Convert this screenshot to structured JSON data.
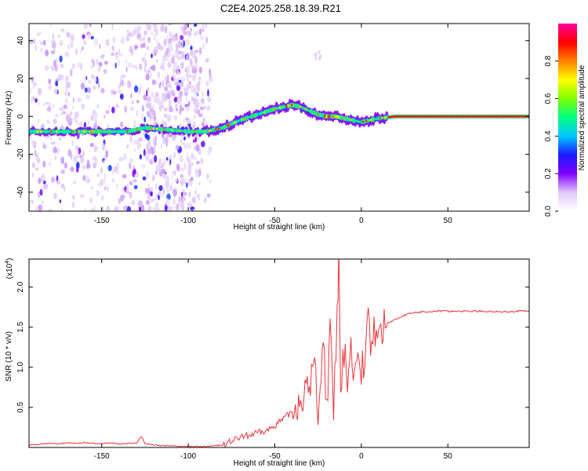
{
  "title": "C2E4.2025.258.18.39.R21",
  "colors": {
    "snr_line": "#e8343a",
    "background": "#ffffff",
    "text": "#000000"
  },
  "chart_data": [
    {
      "type": "heatmap",
      "name": "spectrogram",
      "xlabel": "Height of straight line (km)",
      "ylabel": "Frequency (Hz)",
      "xlim": [
        -192,
        97
      ],
      "ylim": [
        -50,
        49
      ],
      "xticks": [
        -150,
        -100,
        -50,
        0,
        50
      ],
      "xtick_labels": [
        "-150",
        "-100",
        "-50",
        "0",
        "50"
      ],
      "yticks": [
        -40,
        -20,
        0,
        20,
        40
      ],
      "ytick_labels": [
        "-40",
        "-20",
        "0",
        "20",
        "40"
      ],
      "colorbar": {
        "label": "Normalized spectral amplitude",
        "range": [
          0,
          1
        ],
        "ticks": [
          0.0,
          0.2,
          0.4,
          0.6,
          0.8
        ],
        "tick_labels": [
          "0.0",
          "0.2",
          "0.4",
          "0.6",
          "0.8"
        ],
        "colormap": [
          "#ffffff",
          "#e0c8f8",
          "#8000ff",
          "#1a1aff",
          "#00c8ff",
          "#00ff80",
          "#80ff00",
          "#ffff00",
          "#ff8000",
          "#ff0000",
          "#ff00a0"
        ]
      },
      "ridge": {
        "x": [
          -192,
          -170,
          -150,
          -135,
          -125,
          -100,
          -90,
          -80,
          -70,
          -60,
          -50,
          -40,
          -35,
          -30,
          -25,
          -20,
          -15,
          -10,
          -5,
          0,
          5,
          10,
          20,
          40,
          60,
          80,
          97
        ],
        "y": [
          -8,
          -8,
          -8,
          -8,
          -6,
          -8,
          -8,
          -6,
          -2,
          1,
          4,
          6,
          5,
          3,
          1,
          0,
          0,
          -1,
          -2,
          -3,
          -2,
          -1,
          0,
          0,
          0,
          0,
          0
        ]
      }
    },
    {
      "type": "line",
      "name": "snr",
      "xlabel": "Height of straight line (km)",
      "ylabel": "SNR (10 * v/v)",
      "scale_label": "(x10",
      "scale_exp": "4",
      "xlim": [
        -192,
        97
      ],
      "ylim": [
        0,
        2.35
      ],
      "xticks": [
        -150,
        -100,
        -50,
        0,
        50
      ],
      "xtick_labels": [
        "-150",
        "-100",
        "-50",
        "0",
        "50"
      ],
      "yticks": [
        0.5,
        1.0,
        1.5,
        2.0
      ],
      "ytick_labels": [
        "0.5",
        "1.0",
        "1.5",
        "2.0"
      ],
      "series": [
        {
          "name": "SNR",
          "x": [
            -192,
            -185,
            -180,
            -175,
            -170,
            -165,
            -160,
            -155,
            -150,
            -145,
            -140,
            -135,
            -130,
            -127,
            -125,
            -120,
            -110,
            -100,
            -90,
            -80,
            -75,
            -70,
            -65,
            -60,
            -55,
            -50,
            -45,
            -40,
            -35,
            -30,
            -27,
            -25,
            -22,
            -20,
            -18,
            -16,
            -14,
            -13,
            -12,
            -10,
            -8,
            -6,
            -4,
            -2,
            0,
            2,
            4,
            6,
            8,
            10,
            12,
            15,
            20,
            25,
            30,
            35,
            40,
            50,
            60,
            70,
            80,
            90,
            97
          ],
          "y": [
            0.03,
            0.04,
            0.05,
            0.04,
            0.06,
            0.05,
            0.06,
            0.05,
            0.05,
            0.06,
            0.04,
            0.05,
            0.05,
            0.14,
            0.05,
            0.03,
            0.02,
            0.01,
            0.01,
            0.03,
            0.08,
            0.12,
            0.15,
            0.18,
            0.2,
            0.28,
            0.35,
            0.45,
            0.6,
            0.75,
            1.1,
            0.4,
            1.35,
            0.5,
            1.4,
            0.45,
            1.6,
            2.35,
            0.6,
            1.2,
            0.9,
            1.3,
            0.8,
            1.4,
            1.0,
            1.1,
            1.58,
            1.2,
            1.5,
            1.4,
            1.45,
            1.55,
            1.6,
            1.65,
            1.68,
            1.69,
            1.7,
            1.7,
            1.7,
            1.7,
            1.69,
            1.7,
            1.7
          ]
        }
      ]
    }
  ]
}
